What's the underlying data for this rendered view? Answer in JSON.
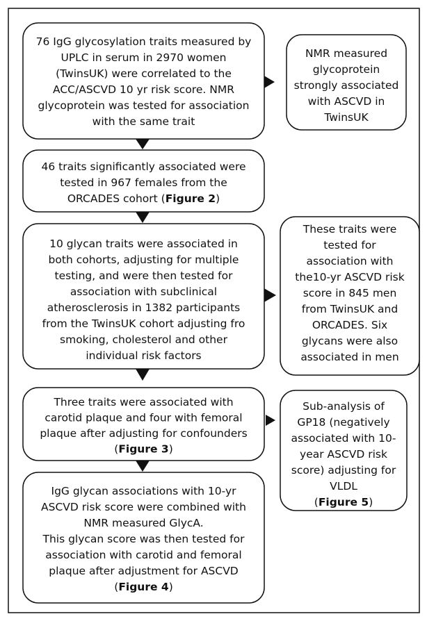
{
  "nodes": [
    {
      "lines": [
        [
          "76 IgG glycosylation traits measured by"
        ],
        [
          "UPLC in serum in 2970 women"
        ],
        [
          "(TwinsUK) were correlated to the"
        ],
        [
          "ACC/ASCVD 10 yr risk score. NMR"
        ],
        [
          "glycoprotein was tested for association"
        ],
        [
          "with the same trait"
        ]
      ]
    },
    {
      "lines": [
        [
          "NMR measured"
        ],
        [
          "glycoprotein"
        ],
        [
          "strongly associated"
        ],
        [
          "with ASCVD in"
        ],
        [
          "TwinsUK"
        ]
      ]
    },
    {
      "lines": [
        [
          "46 traits significantly associated were"
        ],
        [
          "tested in 967 females from the"
        ],
        [
          "ORCADES cohort  (",
          "Figure 2",
          ")"
        ]
      ]
    },
    {
      "lines": [
        [
          "10  glycan traits were associated in"
        ],
        [
          "both cohorts, adjusting for multiple"
        ],
        [
          "testing, and were then tested for"
        ],
        [
          "association with subclinical"
        ],
        [
          "atherosclerosis in 1382 participants"
        ],
        [
          "from the TwinsUK cohort adjusting fro"
        ],
        [
          "smoking, cholesterol and other"
        ],
        [
          "individual risk factors"
        ]
      ]
    },
    {
      "lines": [
        [
          "These traits were"
        ],
        [
          "tested for"
        ],
        [
          "association with"
        ],
        [
          "the10-yr ASCVD risk"
        ],
        [
          "score in 845  men"
        ],
        [
          "from TwinsUK and"
        ],
        [
          "ORCADES. Six"
        ],
        [
          "glycans were also"
        ],
        [
          "associated in men"
        ]
      ]
    },
    {
      "lines": [
        [
          "Three traits were associated with"
        ],
        [
          "carotid plaque and four with femoral"
        ],
        [
          "plaque after adjusting for confounders"
        ],
        [
          "(",
          "Figure 3",
          ")"
        ]
      ]
    },
    {
      "lines": [
        [
          "Sub-analysis of"
        ],
        [
          "GP18 (negatively"
        ],
        [
          "associated with 10-"
        ],
        [
          "year ASCVD risk"
        ],
        [
          "score) adjusting for"
        ],
        [
          "VLDL"
        ],
        [
          "(",
          "Figure 5",
          ")"
        ]
      ]
    },
    {
      "lines": [
        [
          "IgG glycan associations with 10-yr"
        ],
        [
          "ASCVD risk score were combined with"
        ],
        [
          "NMR measured GlycA."
        ],
        [
          "This glycan score was then tested for"
        ],
        [
          "association with carotid and femoral"
        ],
        [
          "plaque after adjustment for ASCVD"
        ],
        [
          "(",
          "Figure 4",
          ")"
        ]
      ]
    }
  ]
}
